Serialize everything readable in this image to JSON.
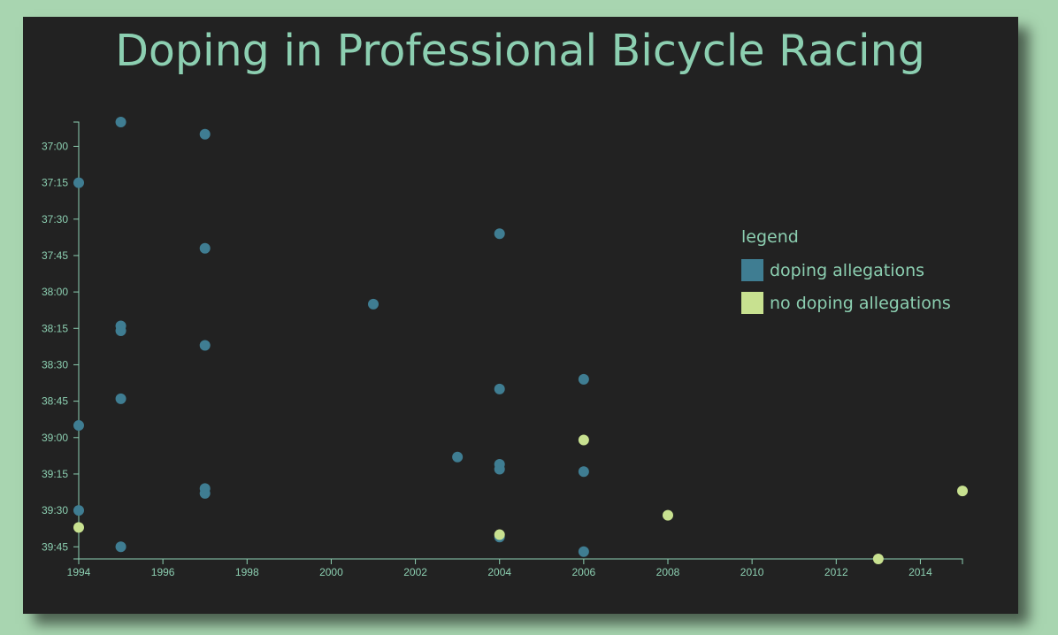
{
  "chart_data": {
    "type": "scatter",
    "title": "Doping in Professional Bicycle Racing",
    "xlabel": "",
    "ylabel": "",
    "xlim": [
      1994,
      2015
    ],
    "ylim_seconds": [
      2210,
      2390
    ],
    "x_ticks": [
      "1994",
      "1996",
      "1998",
      "2000",
      "2002",
      "2004",
      "2006",
      "2008",
      "2010",
      "2012",
      "2014"
    ],
    "y_ticks": [
      "37:00",
      "37:15",
      "37:30",
      "37:45",
      "38:00",
      "38:15",
      "38:30",
      "38:45",
      "39:00",
      "39:15",
      "39:30",
      "39:45"
    ],
    "legend": {
      "title": "legend",
      "position": "right",
      "items": [
        {
          "label": "doping allegations",
          "color": "#3f7d92"
        },
        {
          "label": "no doping allegations",
          "color": "#c8e190"
        }
      ]
    },
    "series": [
      {
        "name": "doping allegations",
        "color": "#3f7d92",
        "points": [
          {
            "year": 1995,
            "time": "36:50"
          },
          {
            "year": 1997,
            "time": "36:55"
          },
          {
            "year": 1994,
            "time": "37:15"
          },
          {
            "year": 2004,
            "time": "37:36"
          },
          {
            "year": 1997,
            "time": "37:42"
          },
          {
            "year": 2001,
            "time": "38:05"
          },
          {
            "year": 1995,
            "time": "38:14"
          },
          {
            "year": 1995,
            "time": "38:16"
          },
          {
            "year": 1997,
            "time": "38:22"
          },
          {
            "year": 2006,
            "time": "38:36"
          },
          {
            "year": 2004,
            "time": "38:40"
          },
          {
            "year": 1995,
            "time": "38:44"
          },
          {
            "year": 1994,
            "time": "38:55"
          },
          {
            "year": 2003,
            "time": "39:08"
          },
          {
            "year": 2004,
            "time": "39:11"
          },
          {
            "year": 2004,
            "time": "39:13"
          },
          {
            "year": 2006,
            "time": "39:14"
          },
          {
            "year": 1997,
            "time": "39:21"
          },
          {
            "year": 1997,
            "time": "39:23"
          },
          {
            "year": 1994,
            "time": "39:30"
          },
          {
            "year": 2004,
            "time": "39:41"
          },
          {
            "year": 1995,
            "time": "39:45"
          },
          {
            "year": 2006,
            "time": "39:47"
          }
        ]
      },
      {
        "name": "no doping allegations",
        "color": "#c8e190",
        "points": [
          {
            "year": 2006,
            "time": "39:01"
          },
          {
            "year": 2015,
            "time": "39:22"
          },
          {
            "year": 2008,
            "time": "39:32"
          },
          {
            "year": 1994,
            "time": "39:37"
          },
          {
            "year": 2004,
            "time": "39:40"
          },
          {
            "year": 2013,
            "time": "39:50"
          }
        ]
      }
    ]
  },
  "colors": {
    "page_background": "#a8d5b0",
    "card_background": "#222222",
    "text": "#8ccfb1",
    "axis": "#8ccfb1"
  }
}
